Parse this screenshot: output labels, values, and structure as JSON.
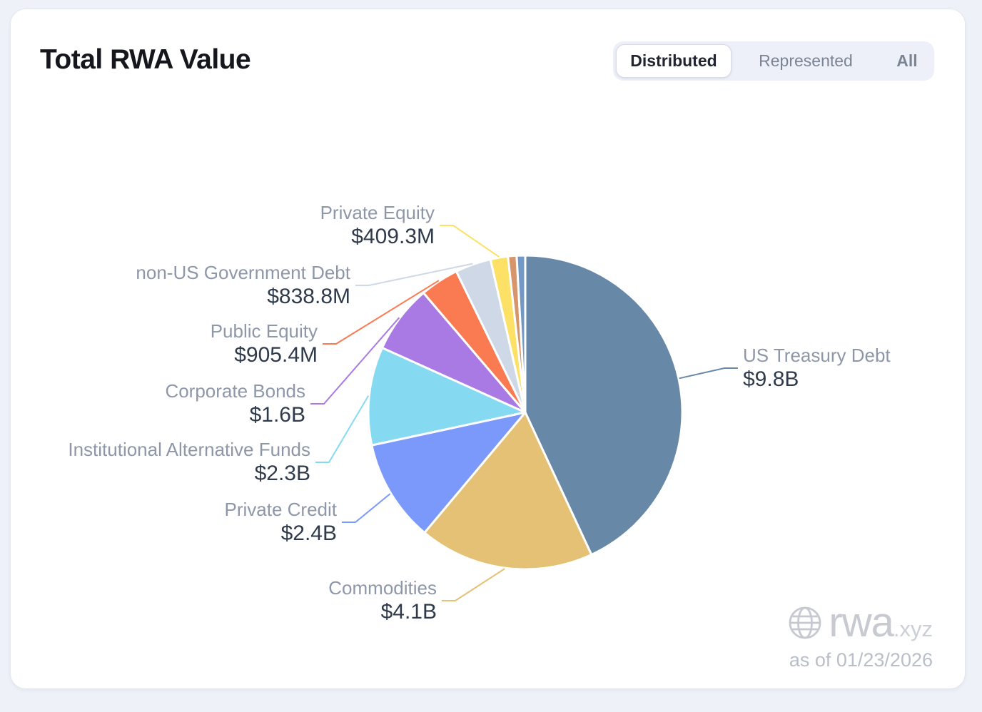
{
  "header": {
    "title": "Total RWA Value"
  },
  "tabs": [
    {
      "label": "Distributed",
      "selected": true
    },
    {
      "label": "Represented",
      "selected": false
    },
    {
      "label": "All",
      "selected": false
    }
  ],
  "watermark": {
    "brand": "rwa",
    "brand_suffix": ".xyz",
    "as_of": "as of 01/23/2026",
    "globe_icon": "globe-icon"
  },
  "chart_data": {
    "type": "pie",
    "title": "Total RWA Value",
    "legend": "none",
    "label_style": "outside-with-leader-lines",
    "start_angle_deg": 0,
    "direction": "clockwise",
    "value_unit": "USD billions",
    "slices": [
      {
        "name": "US Treasury Debt",
        "value_label": "$9.8B",
        "value_billions": 9.8,
        "color": "#6888a8"
      },
      {
        "name": "Commodities",
        "value_label": "$4.1B",
        "value_billions": 4.1,
        "color": "#e5c175"
      },
      {
        "name": "Private Credit",
        "value_label": "$2.4B",
        "value_billions": 2.4,
        "color": "#7b99fa"
      },
      {
        "name": "Institutional Alternative Funds",
        "value_label": "$2.3B",
        "value_billions": 2.3,
        "color": "#85daf2"
      },
      {
        "name": "Corporate Bonds",
        "value_label": "$1.6B",
        "value_billions": 1.6,
        "color": "#aa7ae4"
      },
      {
        "name": "Public Equity",
        "value_label": "$905.4M",
        "value_billions": 0.9054,
        "color": "#fa7a52"
      },
      {
        "name": "non-US Government Debt",
        "value_label": "$838.8M",
        "value_billions": 0.8388,
        "color": "#ced8e6"
      },
      {
        "name": "Private Equity",
        "value_label": "$409.3M",
        "value_billions": 0.4093,
        "color": "#fde066"
      },
      {
        "name": "unlabeled-small-slice-1",
        "value_label": "",
        "value_billions": 0.2,
        "color": "#d6956a",
        "unlabeled": true
      },
      {
        "name": "unlabeled-small-slice-2",
        "value_label": "",
        "value_billions": 0.2,
        "color": "#7298c6",
        "unlabeled": true
      }
    ]
  }
}
